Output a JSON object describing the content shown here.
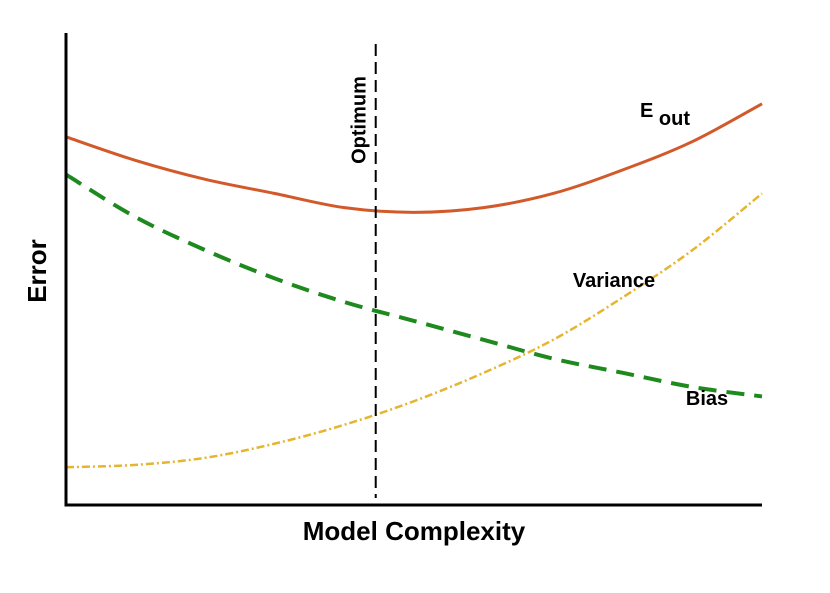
{
  "chart_data": {
    "type": "line",
    "title": "",
    "xlabel": "Model Complexity",
    "ylabel": "Error",
    "xlim": [
      0,
      1
    ],
    "ylim": [
      0,
      1
    ],
    "x": [
      0.0,
      0.1,
      0.2,
      0.3,
      0.4,
      0.5,
      0.6,
      0.7,
      0.8,
      0.9,
      1.0
    ],
    "series": [
      {
        "name": "E_out",
        "label_main": "E",
        "label_sub": "out",
        "color": "#d2592a",
        "style": "solid",
        "values": [
          0.78,
          0.73,
          0.69,
          0.66,
          0.63,
          0.62,
          0.63,
          0.66,
          0.71,
          0.77,
          0.85
        ]
      },
      {
        "name": "Variance",
        "color": "#e6b530",
        "style": "dashdot",
        "values": [
          0.08,
          0.085,
          0.1,
          0.13,
          0.17,
          0.22,
          0.28,
          0.35,
          0.44,
          0.54,
          0.66
        ]
      },
      {
        "name": "Bias",
        "color": "#1e8a1e",
        "style": "dashed",
        "values": [
          0.7,
          0.61,
          0.54,
          0.48,
          0.43,
          0.39,
          0.35,
          0.31,
          0.28,
          0.25,
          0.23
        ]
      }
    ],
    "annotations": [
      {
        "text": "Optimum",
        "x": 0.445,
        "style": "dashed-vertical",
        "color": "#000000"
      }
    ],
    "grid": false,
    "legend": "inline-labels"
  }
}
